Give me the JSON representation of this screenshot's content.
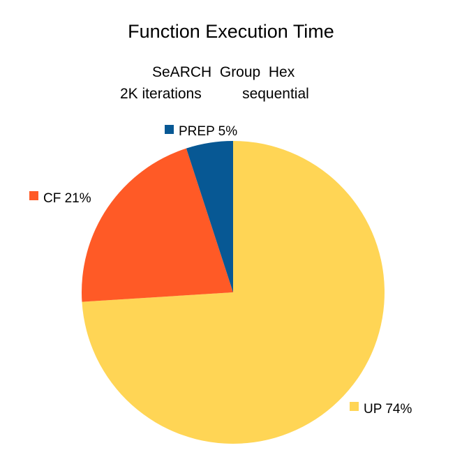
{
  "chart_data": {
    "type": "pie",
    "title": "Function Execution Time",
    "subtitle_lines": [
      "SeARCH  Group  Hex",
      "2K iterations          sequential"
    ],
    "slices": [
      {
        "label": "UP",
        "value": 74,
        "pct_text": "UP 74%",
        "color": "#FFD555"
      },
      {
        "label": "CF",
        "value": 21,
        "pct_text": "CF 21%",
        "color": "#FF5A26"
      },
      {
        "label": "PREP",
        "value": 5,
        "pct_text": "PREP 5%",
        "color": "#075894"
      }
    ]
  }
}
